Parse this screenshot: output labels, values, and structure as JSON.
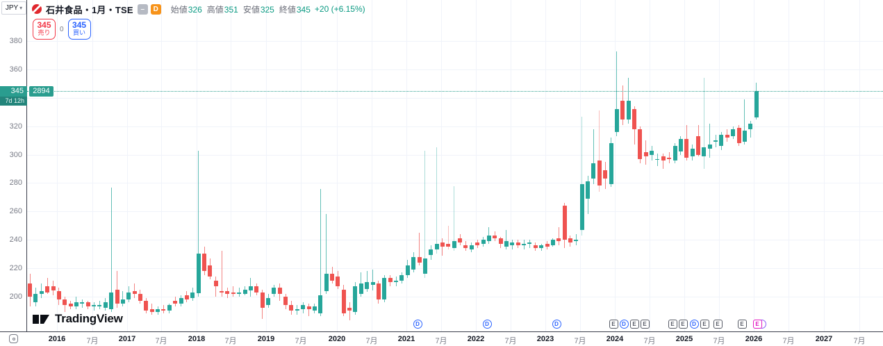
{
  "currency": {
    "label": "JPY"
  },
  "legend": {
    "title": "石井食品・1月・TSE",
    "dash_badge": "–",
    "d_badge": "D",
    "ohlc": [
      {
        "label": "始値",
        "value": "326"
      },
      {
        "label": "高値",
        "value": "351"
      },
      {
        "label": "安値",
        "value": "325"
      },
      {
        "label": "終値",
        "value": "345"
      }
    ],
    "change": "+20 (+6.15%)"
  },
  "order_panel": {
    "sell_price": "345",
    "sell_label": "売り",
    "spread": "0",
    "buy_price": "345",
    "buy_label": "買い"
  },
  "price_axis": {
    "visible_labels": [
      380,
      360,
      320,
      300,
      280,
      260,
      240,
      220,
      200
    ],
    "gridline_prices": [
      380,
      360,
      340,
      320,
      300,
      280,
      260,
      240,
      220,
      200
    ],
    "current": {
      "price": "345",
      "countdown": "7d 12h",
      "symbol_code": "2894"
    }
  },
  "time_axis": {
    "labels": [
      {
        "x": 82,
        "text": "2016",
        "year": true
      },
      {
        "x": 133,
        "text": "7月"
      },
      {
        "x": 183,
        "text": "2017",
        "year": true
      },
      {
        "x": 232,
        "text": "7月"
      },
      {
        "x": 283,
        "text": "2018",
        "year": true
      },
      {
        "x": 332,
        "text": "7月"
      },
      {
        "x": 383,
        "text": "2019",
        "year": true
      },
      {
        "x": 433,
        "text": "7月"
      },
      {
        "x": 485,
        "text": "2020",
        "year": true
      },
      {
        "x": 535,
        "text": "7月"
      },
      {
        "x": 585,
        "text": "2021",
        "year": true
      },
      {
        "x": 635,
        "text": "7月"
      },
      {
        "x": 685,
        "text": "2022",
        "year": true
      },
      {
        "x": 735,
        "text": "7月"
      },
      {
        "x": 785,
        "text": "2023",
        "year": true
      },
      {
        "x": 835,
        "text": "7月"
      },
      {
        "x": 885,
        "text": "2024",
        "year": true
      },
      {
        "x": 935,
        "text": "7月"
      },
      {
        "x": 985,
        "text": "2025",
        "year": true
      },
      {
        "x": 1035,
        "text": "7月"
      },
      {
        "x": 1085,
        "text": "2026",
        "year": true
      },
      {
        "x": 1135,
        "text": "7月"
      },
      {
        "x": 1186,
        "text": "2027",
        "year": true
      },
      {
        "x": 1237,
        "text": "7月"
      }
    ]
  },
  "event_markers": [
    {
      "type": "D",
      "x": 601
    },
    {
      "type": "D",
      "x": 701
    },
    {
      "type": "D",
      "x": 801
    },
    {
      "type": "E",
      "x": 883
    },
    {
      "type": "D",
      "x": 898
    },
    {
      "type": "E",
      "x": 913
    },
    {
      "type": "E",
      "x": 928
    },
    {
      "type": "E",
      "x": 968
    },
    {
      "type": "E",
      "x": 983
    },
    {
      "type": "D",
      "x": 999
    },
    {
      "type": "E",
      "x": 1014
    },
    {
      "type": "E",
      "x": 1033
    },
    {
      "type": "E",
      "x": 1068
    },
    {
      "type": "E_NEXT",
      "x": 1090
    }
  ],
  "watermark": {
    "text": "TradingView"
  },
  "colors": {
    "up": "#26a69a",
    "down": "#ef5350",
    "accent_teal": "#089981",
    "sell_red": "#f23645",
    "buy_blue": "#2962ff",
    "badge_orange": "#f7931a",
    "axis_text": "#787b86",
    "dark_text": "#131722",
    "grid": "#f0f3fa"
  },
  "chart_data": {
    "type": "candlestick",
    "title": "石井食品 (2894) TSE monthly",
    "interval": "1M",
    "start_month": "2015-08",
    "ylabel": "JPY",
    "ylim": [
      183,
      390
    ],
    "grid": true,
    "current_price": 345,
    "candles_ohlc": [
      [
        209,
        216,
        193,
        200
      ],
      [
        196,
        206,
        193,
        202
      ],
      [
        202,
        209,
        199,
        204
      ],
      [
        207,
        213,
        202,
        203
      ],
      [
        207,
        211,
        201,
        204
      ],
      [
        204,
        206,
        194,
        198
      ],
      [
        198,
        200,
        189,
        194
      ],
      [
        195,
        197,
        191,
        193
      ],
      [
        193,
        200,
        191,
        196
      ],
      [
        195,
        198,
        192,
        196
      ],
      [
        196,
        197,
        191,
        193
      ],
      [
        193,
        196,
        190,
        194
      ],
      [
        193,
        197,
        191,
        194
      ],
      [
        192,
        199,
        190,
        196
      ],
      [
        191,
        277,
        189,
        203
      ],
      [
        205,
        218,
        192,
        195
      ],
      [
        195,
        204,
        193,
        198
      ],
      [
        198,
        207,
        196,
        203
      ],
      [
        204,
        209,
        199,
        202
      ],
      [
        202,
        205,
        195,
        197
      ],
      [
        197,
        199,
        188,
        190
      ],
      [
        191,
        195,
        187,
        189
      ],
      [
        189,
        193,
        187,
        191
      ],
      [
        191,
        194,
        188,
        190
      ],
      [
        190,
        195,
        188,
        194
      ],
      [
        197,
        200,
        193,
        195
      ],
      [
        195,
        201,
        193,
        199
      ],
      [
        201,
        204,
        196,
        198
      ],
      [
        199,
        206,
        197,
        203
      ],
      [
        202,
        303,
        200,
        230
      ],
      [
        230,
        235,
        215,
        218
      ],
      [
        222,
        227,
        212,
        214
      ],
      [
        211,
        214,
        200,
        207
      ],
      [
        204,
        232,
        200,
        203
      ],
      [
        204,
        206,
        199,
        202
      ],
      [
        203,
        207,
        200,
        202
      ],
      [
        202,
        206,
        200,
        203
      ],
      [
        202,
        207,
        201,
        205
      ],
      [
        204,
        213,
        200,
        207
      ],
      [
        207,
        209,
        201,
        203
      ],
      [
        203,
        205,
        184,
        192
      ],
      [
        194,
        202,
        192,
        199
      ],
      [
        202,
        208,
        200,
        206
      ],
      [
        206,
        209,
        197,
        202
      ],
      [
        200,
        202,
        191,
        194
      ],
      [
        194,
        197,
        187,
        190
      ],
      [
        190,
        194,
        187,
        191
      ],
      [
        191,
        196,
        188,
        194
      ],
      [
        193,
        195,
        186,
        191
      ],
      [
        190,
        195,
        188,
        193
      ],
      [
        188,
        276,
        186,
        201
      ],
      [
        204,
        258,
        202,
        216
      ],
      [
        216,
        221,
        209,
        211
      ],
      [
        214,
        218,
        205,
        207
      ],
      [
        205,
        208,
        186,
        188
      ],
      [
        192,
        196,
        183,
        190
      ],
      [
        189,
        210,
        187,
        207
      ],
      [
        202,
        217,
        200,
        209
      ],
      [
        205,
        218,
        203,
        210
      ],
      [
        208,
        219,
        204,
        210
      ],
      [
        209,
        211,
        195,
        198
      ],
      [
        198,
        215,
        196,
        213
      ],
      [
        213,
        215,
        207,
        210
      ],
      [
        210,
        214,
        207,
        211
      ],
      [
        211,
        217,
        209,
        215
      ],
      [
        215,
        226,
        213,
        222
      ],
      [
        219,
        231,
        217,
        228
      ],
      [
        228,
        245,
        222,
        224
      ],
      [
        216,
        303,
        213,
        227,
        1
      ],
      [
        229,
        236,
        226,
        233
      ],
      [
        233,
        305,
        230,
        237,
        1
      ],
      [
        238,
        241,
        229,
        235
      ],
      [
        237,
        250,
        233,
        235,
        1
      ],
      [
        234,
        278,
        232,
        239,
        1
      ],
      [
        241,
        244,
        236,
        238
      ],
      [
        236,
        239,
        232,
        234
      ],
      [
        233,
        238,
        231,
        236
      ],
      [
        238,
        240,
        234,
        236
      ],
      [
        237,
        242,
        235,
        240
      ],
      [
        239,
        249,
        237,
        243
      ],
      [
        243,
        246,
        239,
        241
      ],
      [
        241,
        242,
        234,
        237
      ],
      [
        235,
        247,
        233,
        239
      ],
      [
        236,
        240,
        233,
        238
      ],
      [
        238,
        240,
        234,
        236
      ],
      [
        236,
        240,
        233,
        237
      ],
      [
        237,
        240,
        234,
        238
      ],
      [
        236,
        238,
        232,
        234
      ],
      [
        234,
        237,
        232,
        236
      ],
      [
        237,
        239,
        233,
        235
      ],
      [
        236,
        241,
        235,
        240
      ],
      [
        241,
        249,
        236,
        239
      ],
      [
        264,
        266,
        234,
        240
      ],
      [
        241,
        243,
        235,
        238
      ],
      [
        239,
        244,
        236,
        240
      ],
      [
        247,
        327,
        243,
        279,
        1
      ],
      [
        269,
        285,
        258,
        281
      ],
      [
        283,
        318,
        279,
        294
      ],
      [
        296,
        331,
        274,
        278,
        1
      ],
      [
        289,
        295,
        276,
        283
      ],
      [
        279,
        312,
        277,
        308
      ],
      [
        316,
        373,
        313,
        332
      ],
      [
        338,
        349,
        321,
        325
      ],
      [
        325,
        354,
        322,
        338
      ],
      [
        332,
        334,
        307,
        318
      ],
      [
        318,
        320,
        294,
        297
      ],
      [
        302,
        310,
        293,
        299
      ],
      [
        300,
        306,
        296,
        303
      ],
      [
        297,
        301,
        292,
        297
      ],
      [
        299,
        301,
        290,
        296
      ],
      [
        298,
        302,
        294,
        297
      ],
      [
        296,
        308,
        294,
        306
      ],
      [
        302,
        313,
        300,
        311
      ],
      [
        311,
        321,
        296,
        298
      ],
      [
        299,
        307,
        296,
        304
      ],
      [
        313,
        321,
        299,
        300
      ],
      [
        299,
        354,
        290,
        305,
        1
      ],
      [
        304,
        322,
        298,
        307
      ],
      [
        309,
        314,
        305,
        310
      ],
      [
        306,
        316,
        303,
        314
      ],
      [
        314,
        318,
        309,
        312
      ],
      [
        313,
        320,
        311,
        318
      ],
      [
        319,
        321,
        306,
        308
      ],
      [
        309,
        339,
        307,
        317
      ],
      [
        318,
        324,
        312,
        322
      ],
      [
        326,
        351,
        325,
        345
      ]
    ]
  }
}
